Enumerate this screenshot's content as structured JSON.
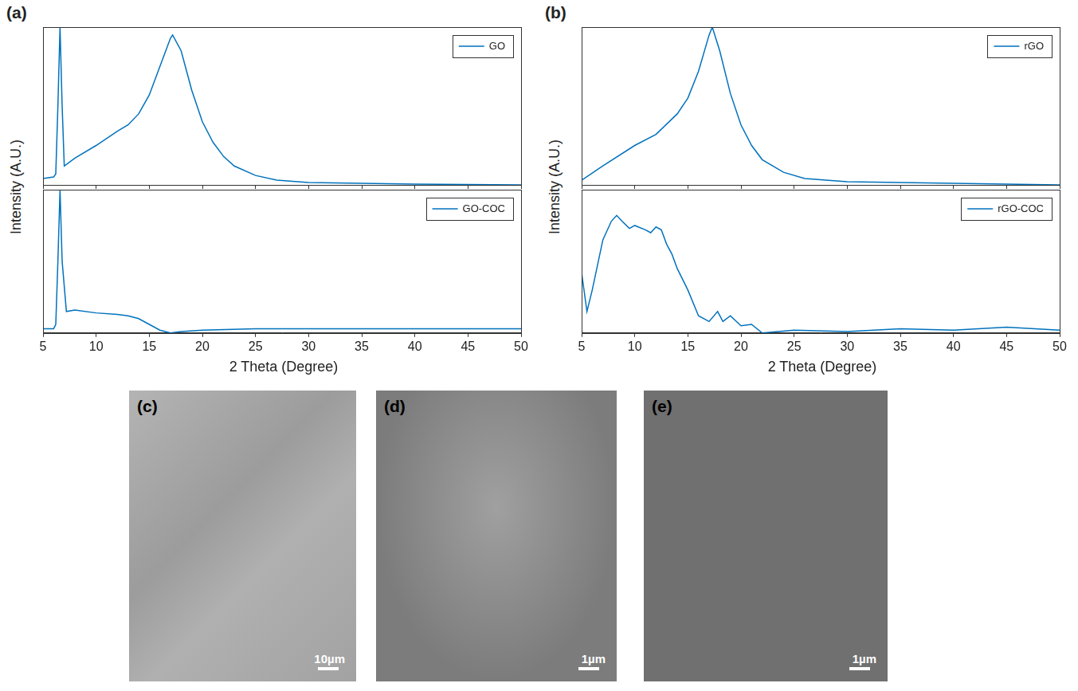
{
  "chart_data": [
    {
      "type": "line",
      "xlim": [
        5,
        50
      ],
      "xticks": [
        5,
        10,
        15,
        20,
        25,
        30,
        35,
        40,
        45,
        50
      ],
      "ylim": [
        0,
        1
      ],
      "grid": false,
      "tick_labels": false,
      "legend": "upper right",
      "x": [
        5,
        6,
        6.2,
        6.4,
        6.6,
        6.8,
        7,
        8,
        10,
        12,
        13,
        14,
        15,
        16,
        17,
        17.2,
        18,
        19,
        20,
        21,
        22,
        23,
        25,
        27,
        30,
        35,
        40,
        50
      ],
      "series": [
        {
          "name": "GO",
          "color": "#0072bd",
          "values": [
            0.04,
            0.05,
            0.07,
            0.5,
            1.0,
            0.5,
            0.12,
            0.17,
            0.25,
            0.34,
            0.38,
            0.45,
            0.57,
            0.75,
            0.93,
            0.95,
            0.85,
            0.6,
            0.4,
            0.27,
            0.18,
            0.12,
            0.06,
            0.03,
            0.015,
            0.01,
            0.005,
            0.0
          ]
        }
      ]
    },
    {
      "type": "line",
      "xlim": [
        5,
        50
      ],
      "xticks": [
        5,
        10,
        15,
        20,
        25,
        30,
        35,
        40,
        45,
        50
      ],
      "ylim": [
        0,
        1
      ],
      "grid": false,
      "tick_labels": "x",
      "legend": "upper right",
      "x": [
        5,
        6,
        6.2,
        6.4,
        6.6,
        6.8,
        7.2,
        8,
        10,
        12,
        13,
        14,
        15,
        16,
        17,
        18,
        20,
        25,
        30,
        40,
        50
      ],
      "series": [
        {
          "name": "GO-COC",
          "color": "#0072bd",
          "values": [
            0.03,
            0.03,
            0.06,
            0.5,
            1.0,
            0.5,
            0.15,
            0.16,
            0.14,
            0.13,
            0.12,
            0.1,
            0.06,
            0.02,
            0.0,
            0.01,
            0.02,
            0.03,
            0.03,
            0.03,
            0.03
          ]
        }
      ]
    },
    {
      "type": "line",
      "xlim": [
        5,
        50
      ],
      "xticks": [
        5,
        10,
        15,
        20,
        25,
        30,
        35,
        40,
        45,
        50
      ],
      "ylim": [
        0,
        1
      ],
      "grid": false,
      "tick_labels": false,
      "legend": "upper right",
      "x": [
        5,
        7,
        10,
        12,
        14,
        15,
        16,
        17,
        17.3,
        18,
        19,
        20,
        21,
        22,
        24,
        26,
        30,
        35,
        50
      ],
      "series": [
        {
          "name": "rGO",
          "color": "#0072bd",
          "values": [
            0.03,
            0.12,
            0.25,
            0.32,
            0.45,
            0.55,
            0.72,
            0.95,
            1.0,
            0.85,
            0.58,
            0.38,
            0.25,
            0.16,
            0.08,
            0.04,
            0.02,
            0.015,
            0.0
          ]
        }
      ]
    },
    {
      "type": "line",
      "xlim": [
        5,
        50
      ],
      "xticks": [
        5,
        10,
        15,
        20,
        25,
        30,
        35,
        40,
        45,
        50
      ],
      "ylim": [
        0,
        1
      ],
      "grid": false,
      "tick_labels": "x",
      "legend": "upper right",
      "x": [
        5,
        5.5,
        6,
        7,
        7.8,
        8.3,
        8.8,
        9.5,
        10,
        11,
        11.5,
        12,
        12.5,
        13,
        13.5,
        14,
        15,
        16,
        17,
        17.8,
        18.3,
        19,
        20,
        21,
        22,
        25,
        30,
        35,
        40,
        45,
        50
      ],
      "series": [
        {
          "name": "rGO-COC",
          "color": "#0072bd",
          "values": [
            0.42,
            0.15,
            0.3,
            0.65,
            0.78,
            0.82,
            0.78,
            0.73,
            0.75,
            0.72,
            0.7,
            0.74,
            0.72,
            0.62,
            0.55,
            0.45,
            0.3,
            0.12,
            0.08,
            0.15,
            0.08,
            0.12,
            0.05,
            0.06,
            0.0,
            0.02,
            0.01,
            0.03,
            0.02,
            0.04,
            0.02
          ]
        }
      ]
    }
  ],
  "panels": [
    {
      "label": "(a)",
      "ylabel": "Intensity (A.U.)",
      "xlabel": "2 Theta (Degree)"
    },
    {
      "label": "(b)",
      "ylabel": "Intensity (A.U.)",
      "xlabel": "2 Theta (Degree)"
    }
  ],
  "images": [
    {
      "label": "(c)",
      "scale_bar": "10µm"
    },
    {
      "label": "(d)",
      "scale_bar": "1µm"
    },
    {
      "label": "(e)",
      "scale_bar": "1µm"
    }
  ]
}
